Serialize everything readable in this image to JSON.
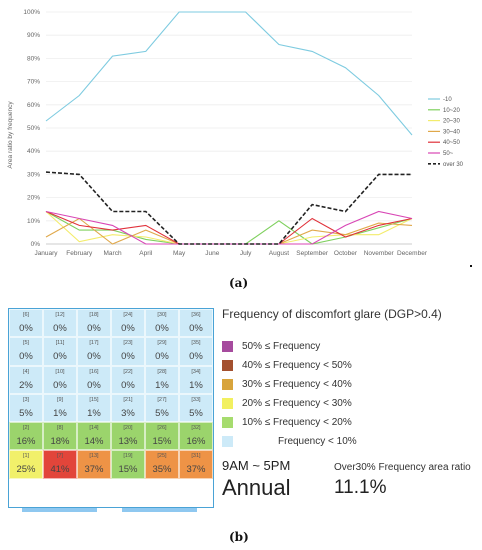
{
  "chart_data": [
    {
      "type": "line",
      "ylabel": "Area ratio by frequency",
      "categories": [
        "January",
        "February",
        "March",
        "April",
        "May",
        "June",
        "July",
        "August",
        "September",
        "October",
        "November",
        "December"
      ],
      "ylim": [
        0,
        100
      ],
      "yticks": [
        "0%",
        "10%",
        "20%",
        "30%",
        "40%",
        "50%",
        "60%",
        "70%",
        "80%",
        "90%",
        "100%"
      ],
      "legend_position": "right",
      "series": [
        {
          "name": "-10",
          "color": "#7ecbe0",
          "dash": false,
          "values": [
            53,
            64,
            81,
            83,
            100,
            100,
            100,
            86,
            83,
            76,
            64,
            47
          ]
        },
        {
          "name": "10~20",
          "color": "#7fd05e",
          "dash": false,
          "values": [
            14,
            6,
            6,
            2,
            0,
            0,
            0,
            10,
            0,
            3,
            7,
            11
          ]
        },
        {
          "name": "20~30",
          "color": "#f3ec6c",
          "dash": false,
          "values": [
            14,
            1,
            4,
            3,
            0,
            0,
            0,
            0,
            3,
            4,
            4,
            11
          ]
        },
        {
          "name": "30~40",
          "color": "#e0a84a",
          "dash": false,
          "values": [
            3,
            11,
            0,
            6,
            0,
            0,
            0,
            0,
            6,
            4,
            9,
            8
          ]
        },
        {
          "name": "40~50",
          "color": "#e0313a",
          "dash": false,
          "values": [
            14,
            8,
            6,
            8,
            0,
            0,
            0,
            0,
            11,
            3,
            8,
            11
          ]
        },
        {
          "name": "50~",
          "color": "#d846b5",
          "dash": false,
          "values": [
            14,
            11,
            8,
            0,
            0,
            0,
            0,
            0,
            0,
            8,
            14,
            11
          ]
        },
        {
          "name": "over 30",
          "color": "#222222",
          "dash": true,
          "values": [
            31,
            30,
            14,
            14,
            0,
            0,
            0,
            0,
            17,
            14,
            30,
            30
          ]
        }
      ]
    },
    {
      "type": "heatmap",
      "title": "Frequency of discomfort glare (DGP>0.4)",
      "columns": 6,
      "rows": [
        [
          {
            "id": "[6]",
            "v": "0%",
            "c": "#cdeaf8"
          },
          {
            "id": "[12]",
            "v": "0%",
            "c": "#cdeaf8"
          },
          {
            "id": "[18]",
            "v": "0%",
            "c": "#cdeaf8"
          },
          {
            "id": "[24]",
            "v": "0%",
            "c": "#cdeaf8"
          },
          {
            "id": "[30]",
            "v": "0%",
            "c": "#cdeaf8"
          },
          {
            "id": "[36]",
            "v": "0%",
            "c": "#cdeaf8"
          }
        ],
        [
          {
            "id": "[5]",
            "v": "0%",
            "c": "#cdeaf8"
          },
          {
            "id": "[11]",
            "v": "0%",
            "c": "#cdeaf8"
          },
          {
            "id": "[17]",
            "v": "0%",
            "c": "#cdeaf8"
          },
          {
            "id": "[23]",
            "v": "0%",
            "c": "#cdeaf8"
          },
          {
            "id": "[29]",
            "v": "0%",
            "c": "#cdeaf8"
          },
          {
            "id": "[35]",
            "v": "0%",
            "c": "#cdeaf8"
          }
        ],
        [
          {
            "id": "[4]",
            "v": "2%",
            "c": "#cdeaf8"
          },
          {
            "id": "[10]",
            "v": "0%",
            "c": "#cdeaf8"
          },
          {
            "id": "[16]",
            "v": "0%",
            "c": "#cdeaf8"
          },
          {
            "id": "[22]",
            "v": "0%",
            "c": "#cdeaf8"
          },
          {
            "id": "[28]",
            "v": "1%",
            "c": "#cdeaf8"
          },
          {
            "id": "[34]",
            "v": "1%",
            "c": "#cdeaf8"
          }
        ],
        [
          {
            "id": "[3]",
            "v": "5%",
            "c": "#cdeaf8"
          },
          {
            "id": "[9]",
            "v": "1%",
            "c": "#cdeaf8"
          },
          {
            "id": "[15]",
            "v": "1%",
            "c": "#cdeaf8"
          },
          {
            "id": "[21]",
            "v": "3%",
            "c": "#cdeaf8"
          },
          {
            "id": "[27]",
            "v": "5%",
            "c": "#cdeaf8"
          },
          {
            "id": "[33]",
            "v": "5%",
            "c": "#cdeaf8"
          }
        ],
        [
          {
            "id": "[2]",
            "v": "16%",
            "c": "#9bd46c"
          },
          {
            "id": "[8]",
            "v": "18%",
            "c": "#9bd46c"
          },
          {
            "id": "[14]",
            "v": "14%",
            "c": "#9bd46c"
          },
          {
            "id": "[20]",
            "v": "13%",
            "c": "#9bd46c"
          },
          {
            "id": "[26]",
            "v": "15%",
            "c": "#9bd46c"
          },
          {
            "id": "[32]",
            "v": "16%",
            "c": "#9bd46c"
          }
        ],
        [
          {
            "id": "[1]",
            "v": "25%",
            "c": "#f1f06a"
          },
          {
            "id": "[7]",
            "v": "41%",
            "c": "#e2453a"
          },
          {
            "id": "[13]",
            "v": "37%",
            "c": "#ee9346"
          },
          {
            "id": "[19]",
            "v": "15%",
            "c": "#9bd46c"
          },
          {
            "id": "[25]",
            "v": "35%",
            "c": "#ee9346"
          },
          {
            "id": "[31]",
            "v": "37%",
            "c": "#ee9346"
          }
        ]
      ],
      "legend": [
        {
          "label": "50% ≤ Frequency",
          "color": "#a64b9e"
        },
        {
          "label": "40% ≤ Frequency  < 50%",
          "color": "#a3502f"
        },
        {
          "label": "30% ≤ Frequency  < 40%",
          "color": "#d8a43c"
        },
        {
          "label": "20% ≤ Frequency  < 30%",
          "color": "#f2f060"
        },
        {
          "label": "10% ≤ Frequency  < 20%",
          "color": "#a6dc6e"
        },
        {
          "label": "Frequency  < 10%",
          "color": "#cdeaf8"
        }
      ],
      "time_range": "9AM ~ 5PM",
      "period": "Annual",
      "over30_label": "Over30% Frequency area ratio",
      "over30_value": "11.1%"
    }
  ],
  "labels": {
    "a": "(a)",
    "b": "(b)"
  }
}
